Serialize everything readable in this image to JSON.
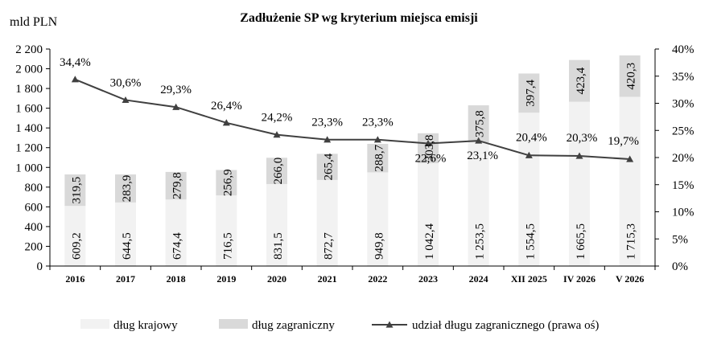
{
  "chart_data": {
    "type": "bar",
    "title": "Zadłużenie SP wg kryterium miejsca emisji",
    "ylabel": "mld PLN",
    "ylim": [
      0,
      2200
    ],
    "y_ticks": [
      "0",
      "200",
      "400",
      "600",
      "800",
      "1 000",
      "1 200",
      "1 400",
      "1 600",
      "1 800",
      "2 000",
      "2 200"
    ],
    "y2lim": [
      0,
      40
    ],
    "y2_ticks": [
      "0%",
      "5%",
      "10%",
      "15%",
      "20%",
      "25%",
      "30%",
      "35%",
      "40%"
    ],
    "categories": [
      "2016",
      "2017",
      "2018",
      "2019",
      "2020",
      "2021",
      "2022",
      "2023",
      "2024",
      "XII 2025",
      "IV 2026",
      "V 2026"
    ],
    "series": [
      {
        "name": "dług krajowy",
        "kind": "stacked-bar",
        "color": "#f2f2f2",
        "values": [
          609.2,
          644.5,
          674.4,
          716.5,
          831.5,
          872.7,
          949.8,
          1042.4,
          1253.5,
          1554.5,
          1665.5,
          1715.3
        ],
        "labels": [
          "609,2",
          "644,5",
          "674,4",
          "716,5",
          "831,5",
          "872,7",
          "949,8",
          "1 042,4",
          "1 253,5",
          "1 554,5",
          "1 665,5",
          "1 715,3"
        ]
      },
      {
        "name": "dług zagraniczny",
        "kind": "stacked-bar",
        "color": "#d9d9d9",
        "values": [
          319.5,
          283.9,
          279.8,
          256.9,
          266.0,
          265.4,
          288.7,
          303.8,
          375.8,
          397.4,
          423.4,
          420.3
        ],
        "labels": [
          "319,5",
          "283,9",
          "279,8",
          "256,9",
          "266,0",
          "265,4",
          "288,7",
          "303,8",
          "375,8",
          "397,4",
          "423,4",
          "420,3"
        ]
      },
      {
        "name": "udział długu zagranicznego (prawa oś)",
        "kind": "line",
        "axis": "right",
        "color": "#404040",
        "values": [
          34.4,
          30.6,
          29.3,
          26.4,
          24.2,
          23.3,
          23.3,
          22.6,
          23.1,
          20.4,
          20.3,
          19.7
        ],
        "labels": [
          "34,4%",
          "30,6%",
          "29,3%",
          "26,4%",
          "24,2%",
          "23,3%",
          "23,3%",
          "22,6%",
          "23,1%",
          "20,4%",
          "20,3%",
          "19,7%"
        ]
      }
    ],
    "legend_position": "bottom",
    "grid": false
  }
}
